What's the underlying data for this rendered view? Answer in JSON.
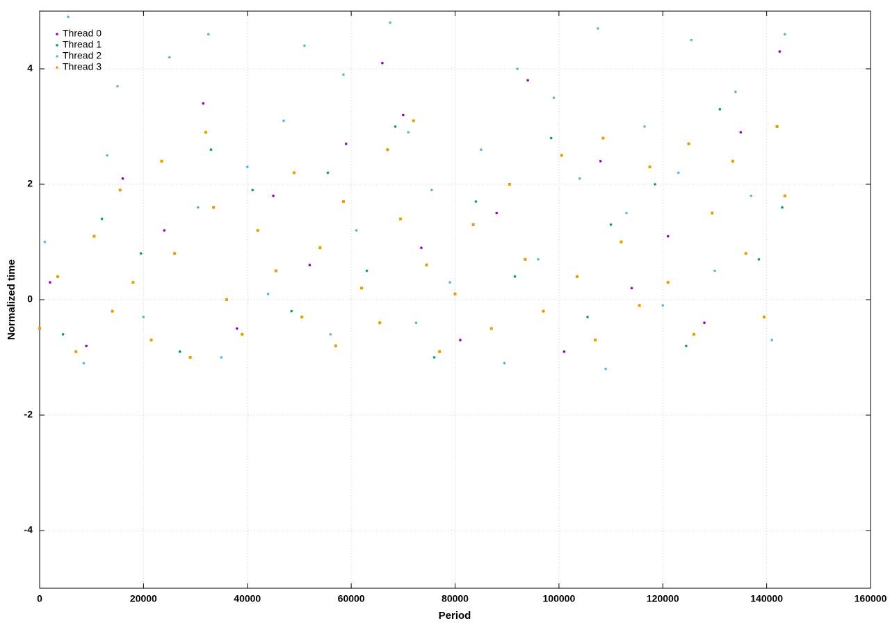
{
  "chart_data": {
    "type": "scatter",
    "x_label": "Period",
    "y_label": "Normalized time",
    "xlim": [
      0,
      160000
    ],
    "ylim": [
      -5,
      5
    ],
    "xticks": [
      0,
      20000,
      40000,
      60000,
      80000,
      100000,
      120000,
      140000,
      160000
    ],
    "yticks": [
      -4,
      -2,
      0,
      2,
      4
    ],
    "grid": true,
    "legend": "top-left",
    "series": [
      {
        "name": "Thread 0",
        "color": "#9400d3",
        "x": [
          2000,
          9000,
          16000,
          24000,
          31500,
          38000,
          45000,
          52000,
          59000,
          66000,
          70000,
          73500,
          81000,
          88000,
          94000,
          101000,
          108000,
          114000,
          121000,
          128000,
          135000,
          142500
        ],
        "values": [
          0.3,
          -0.8,
          2.1,
          1.2,
          3.4,
          -0.5,
          1.8,
          0.6,
          2.7,
          4.1,
          3.2,
          0.9,
          -0.7,
          1.5,
          3.8,
          -0.9,
          2.4,
          0.2,
          1.1,
          -0.4,
          2.9,
          4.3
        ]
      },
      {
        "name": "Thread 1",
        "color": "#009e73",
        "x": [
          4500,
          12000,
          19500,
          27000,
          33000,
          41000,
          48500,
          55500,
          63000,
          68500,
          76000,
          84000,
          91500,
          98500,
          105500,
          110000,
          118500,
          124500,
          131000,
          138500,
          143000
        ],
        "values": [
          -0.6,
          1.4,
          0.8,
          -0.9,
          2.6,
          1.9,
          -0.2,
          2.2,
          0.5,
          3.0,
          -1.0,
          1.7,
          0.4,
          2.8,
          -0.3,
          1.3,
          2.0,
          -0.8,
          3.3,
          0.7,
          1.6
        ]
      },
      {
        "name": "Thread 2",
        "color": "#56b4e9",
        "x": [
          1000,
          5500,
          8500,
          13000,
          15000,
          20000,
          25000,
          30500,
          32500,
          35000,
          40000,
          44000,
          47000,
          51000,
          56000,
          58500,
          61000,
          67500,
          71000,
          72500,
          75500,
          79000,
          85000,
          89500,
          92000,
          96000,
          99000,
          104000,
          107500,
          109000,
          113000,
          116500,
          120000,
          123000,
          125500,
          130000,
          134000,
          137000,
          141000,
          143500
        ],
        "values": [
          1.0,
          4.9,
          -1.1,
          2.5,
          3.7,
          -0.3,
          4.2,
          1.6,
          4.6,
          -1.0,
          2.3,
          0.1,
          3.1,
          4.4,
          -0.6,
          3.9,
          1.2,
          4.8,
          2.9,
          -0.4,
          1.9,
          0.3,
          2.6,
          -1.1,
          4.0,
          0.7,
          3.5,
          2.1,
          4.7,
          -1.2,
          1.5,
          3.0,
          -0.1,
          2.2,
          4.5,
          0.5,
          3.6,
          1.8,
          -0.7,
          4.6
        ]
      },
      {
        "name": "Thread 3",
        "color": "#e69f00",
        "x": [
          0,
          3500,
          7000,
          10500,
          14000,
          15500,
          18000,
          21500,
          23500,
          26000,
          29000,
          32000,
          33500,
          36000,
          39000,
          42000,
          45500,
          49000,
          50500,
          54000,
          57000,
          58500,
          62000,
          65500,
          67000,
          69500,
          72000,
          74500,
          77000,
          80000,
          83500,
          87000,
          90500,
          93500,
          97000,
          100500,
          103500,
          107000,
          108500,
          112000,
          115500,
          117500,
          121000,
          125000,
          126000,
          129500,
          133500,
          136000,
          139500,
          142000,
          143500
        ],
        "values": [
          -0.5,
          0.4,
          -0.9,
          1.1,
          -0.2,
          1.9,
          0.3,
          -0.7,
          2.4,
          0.8,
          -1.0,
          2.9,
          1.6,
          0.0,
          -0.6,
          1.2,
          0.5,
          2.2,
          -0.3,
          0.9,
          -0.8,
          1.7,
          0.2,
          -0.4,
          2.6,
          1.4,
          3.1,
          0.6,
          -0.9,
          0.1,
          1.3,
          -0.5,
          2.0,
          0.7,
          -0.2,
          2.5,
          0.4,
          -0.7,
          2.8,
          1.0,
          -0.1,
          2.3,
          0.3,
          2.7,
          -0.6,
          1.5,
          2.4,
          0.8,
          -0.3,
          3.0,
          1.8
        ]
      }
    ]
  }
}
